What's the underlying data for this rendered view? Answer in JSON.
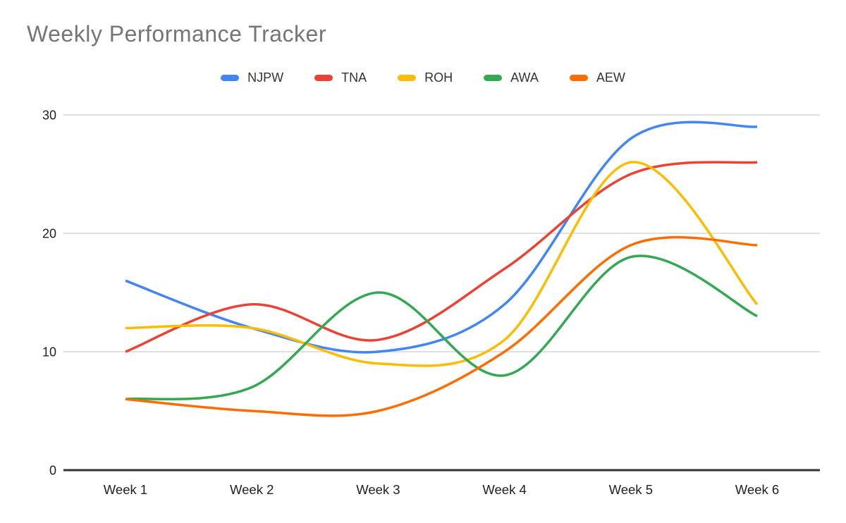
{
  "header": {
    "title": "Weekly Performance Tracker",
    "title_color": "#757575"
  },
  "chart_data": {
    "type": "line",
    "title": "Weekly Performance Tracker",
    "categories": [
      "Week 1",
      "Week 2",
      "Week 3",
      "Week 4",
      "Week 5",
      "Week 6"
    ],
    "series": [
      {
        "name": "NJPW",
        "color": "#4285F4",
        "values": [
          16,
          12,
          10,
          14,
          28,
          29
        ]
      },
      {
        "name": "TNA",
        "color": "#EA4335",
        "values": [
          10,
          14,
          11,
          17,
          25,
          26
        ]
      },
      {
        "name": "ROH",
        "color": "#FBBC04",
        "values": [
          12,
          12,
          9,
          11,
          26,
          14
        ]
      },
      {
        "name": "AWA",
        "color": "#34A853",
        "values": [
          6,
          7,
          15,
          8,
          18,
          13
        ]
      },
      {
        "name": "AEW",
        "color": "#FF6D01",
        "values": [
          6,
          5,
          5,
          10,
          19,
          19
        ]
      }
    ],
    "xlabel": "",
    "ylabel": "",
    "ylim": [
      0,
      30
    ],
    "yticks": [
      0,
      10,
      20,
      30
    ],
    "grid": true,
    "curve": "smooth",
    "legend_position": "top",
    "styles": {
      "gridline_color": "#e0e0e0",
      "axis_color": "#333333",
      "tick_label_color": "#212121",
      "background": "#ffffff"
    }
  }
}
